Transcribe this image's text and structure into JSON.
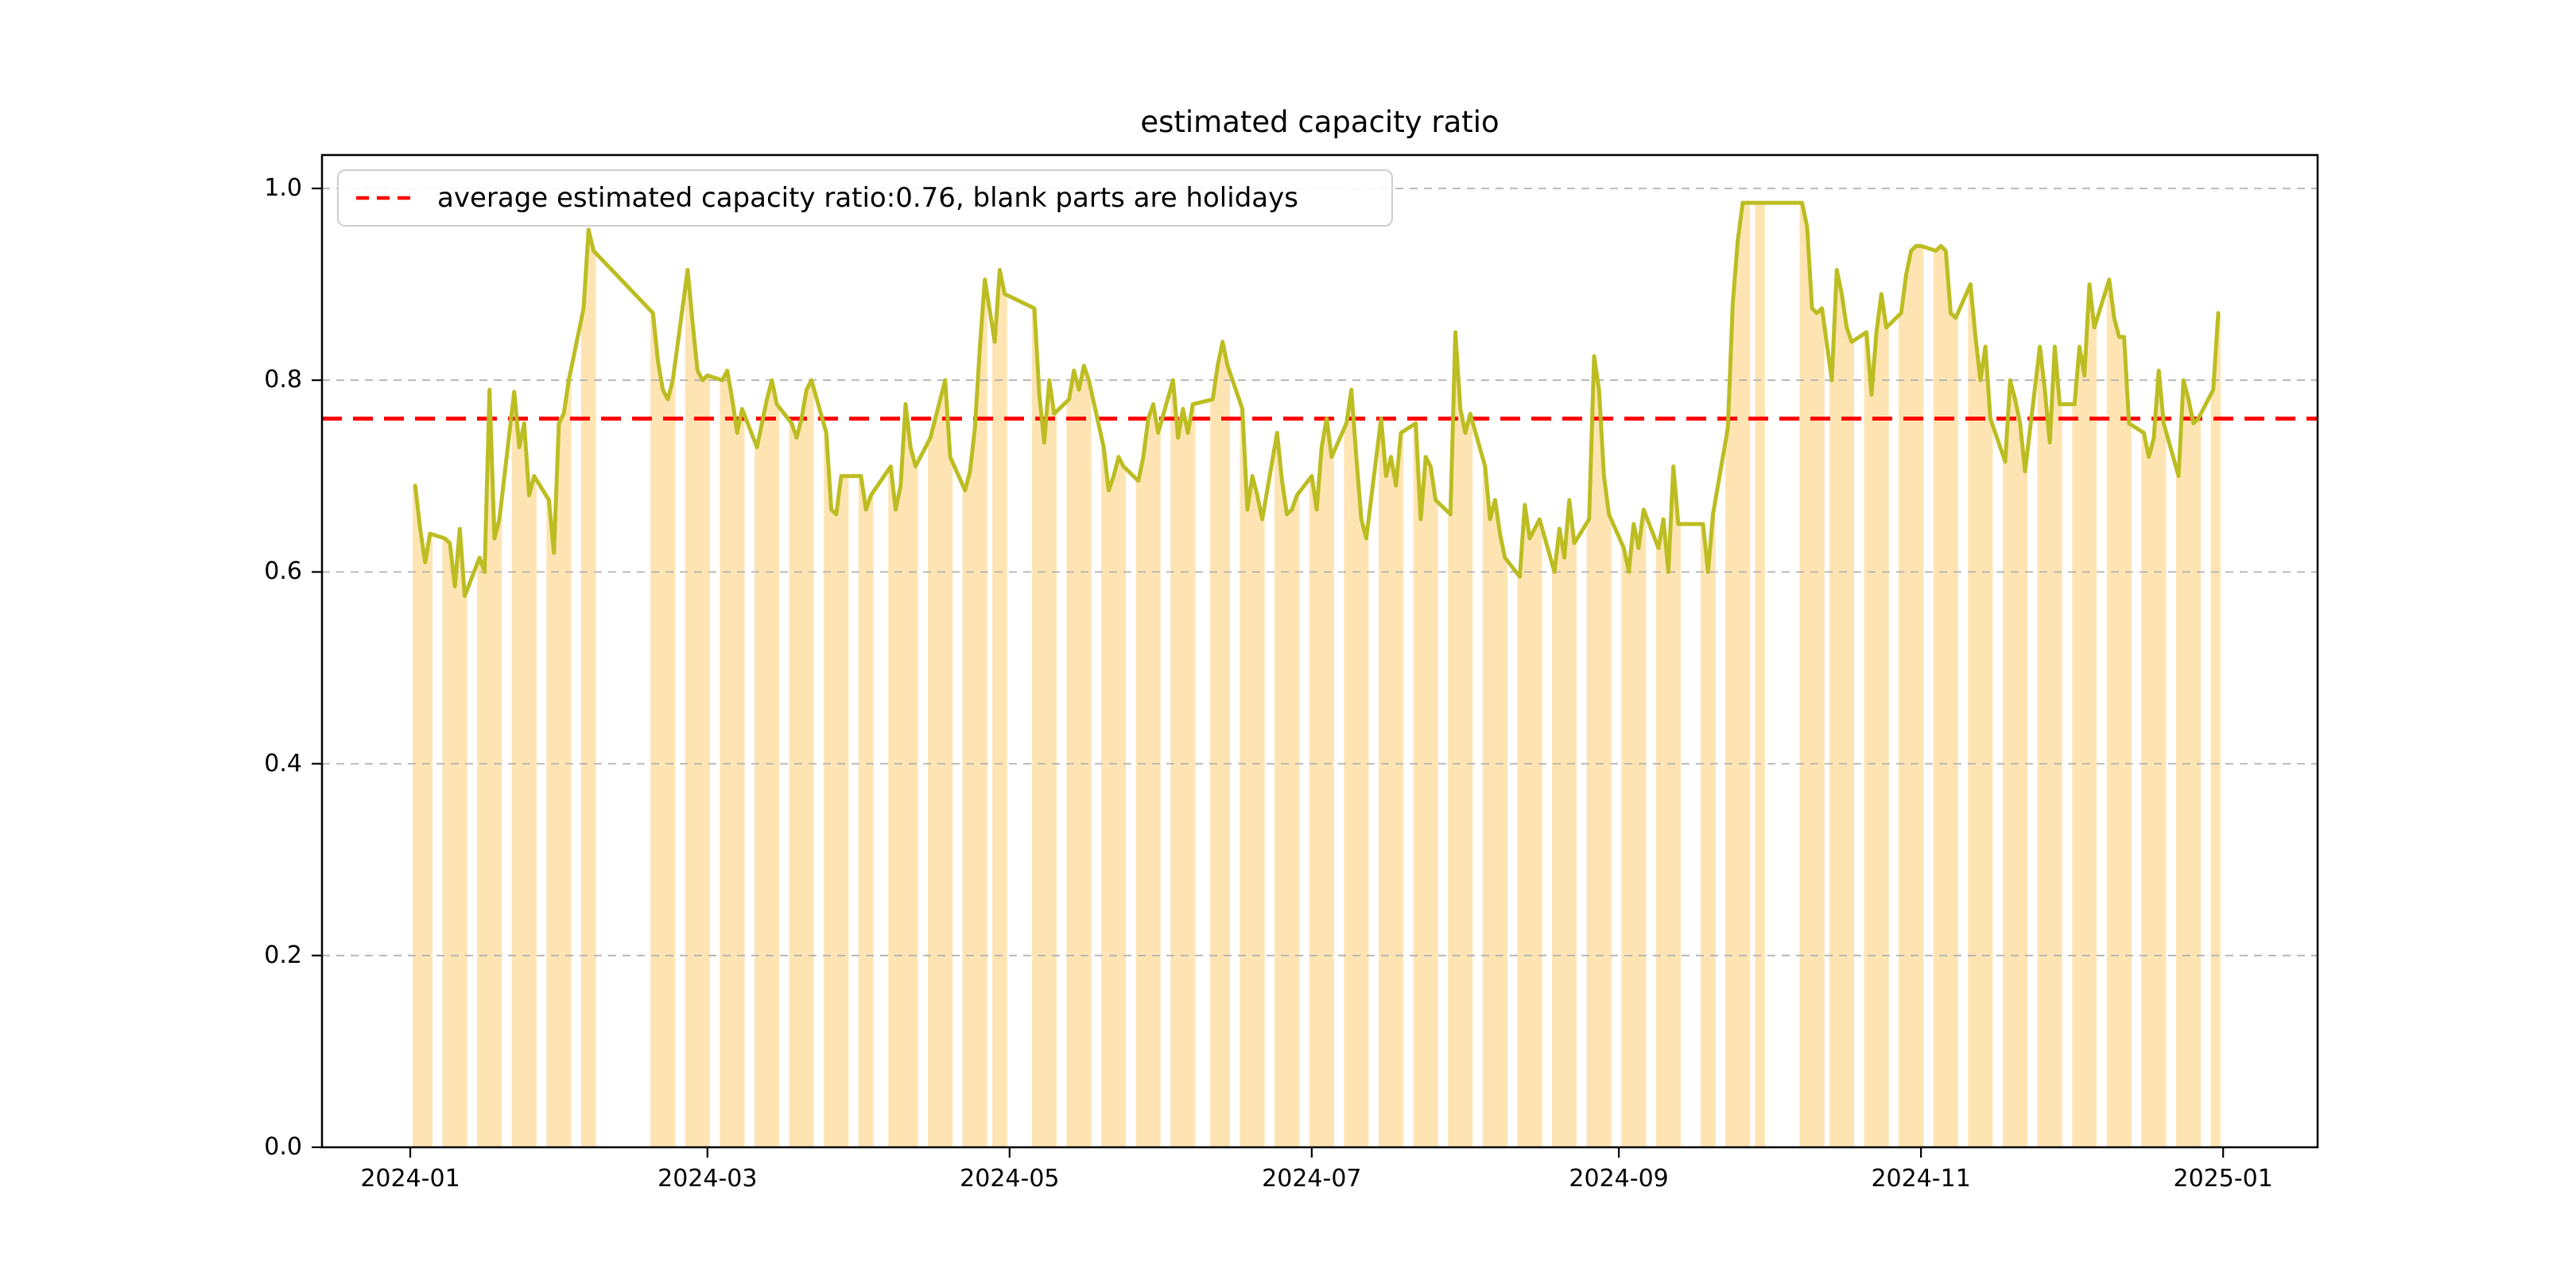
{
  "chart_data": {
    "type": "line",
    "title": "estimated capacity ratio",
    "legend": {
      "label": "average estimated capacity ratio:0.76, blank parts are holidays",
      "line_color": "#ff0000",
      "line_style": "dashed",
      "position": "upper left"
    },
    "average_line": {
      "value": 0.76,
      "color": "#ff0000",
      "style": "dashed"
    },
    "y_axis": {
      "tick_labels": [
        "0.0",
        "0.2",
        "0.4",
        "0.6",
        "0.8",
        "1.0"
      ],
      "tick_values": [
        0.0,
        0.2,
        0.4,
        0.6,
        0.8,
        1.0
      ],
      "range": [
        0.0,
        1.035
      ],
      "gridlines": "dashed gray"
    },
    "x_axis": {
      "tick_labels": [
        "2024-01",
        "2024-03",
        "2024-05",
        "2024-07",
        "2024-09",
        "2024-11",
        "2025-01"
      ],
      "tick_dates": [
        "2024-01-01",
        "2024-03-01",
        "2024-05-01",
        "2024-07-01",
        "2024-09-01",
        "2024-11-01",
        "2025-01-01"
      ],
      "range_dates": [
        "2023-12-14",
        "2025-01-20"
      ]
    },
    "series_name": "estimated capacity ratio (workdays only, blanks are holidays)",
    "series_color": "#bcbd22",
    "area_color": "#ffe4b3",
    "grid_color": "#b2b2b2",
    "series": [
      [
        "2024-01-02",
        0.69
      ],
      [
        "2024-01-03",
        0.645
      ],
      [
        "2024-01-04",
        0.61
      ],
      [
        "2024-01-05",
        0.64
      ],
      [
        "2024-01-08",
        0.635
      ],
      [
        "2024-01-09",
        0.63
      ],
      [
        "2024-01-10",
        0.585
      ],
      [
        "2024-01-11",
        0.645
      ],
      [
        "2024-01-12",
        0.575
      ],
      [
        "2024-01-15",
        0.615
      ],
      [
        "2024-01-16",
        0.6
      ],
      [
        "2024-01-17",
        0.79
      ],
      [
        "2024-01-18",
        0.635
      ],
      [
        "2024-01-19",
        0.655
      ],
      [
        "2024-01-22",
        0.788
      ],
      [
        "2024-01-23",
        0.73
      ],
      [
        "2024-01-24",
        0.755
      ],
      [
        "2024-01-25",
        0.68
      ],
      [
        "2024-01-26",
        0.7
      ],
      [
        "2024-01-29",
        0.675
      ],
      [
        "2024-01-30",
        0.62
      ],
      [
        "2024-01-31",
        0.755
      ],
      [
        "2024-02-01",
        0.765
      ],
      [
        "2024-02-02",
        0.8
      ],
      [
        "2024-02-05",
        0.875
      ],
      [
        "2024-02-06",
        0.957
      ],
      [
        "2024-02-07",
        0.935
      ],
      [
        "2024-02-19",
        0.87
      ],
      [
        "2024-02-20",
        0.82
      ],
      [
        "2024-02-21",
        0.79
      ],
      [
        "2024-02-22",
        0.78
      ],
      [
        "2024-02-23",
        0.8
      ],
      [
        "2024-02-26",
        0.915
      ],
      [
        "2024-02-27",
        0.86
      ],
      [
        "2024-02-28",
        0.81
      ],
      [
        "2024-02-29",
        0.8
      ],
      [
        "2024-03-01",
        0.805
      ],
      [
        "2024-03-04",
        0.8
      ],
      [
        "2024-03-05",
        0.81
      ],
      [
        "2024-03-06",
        0.78
      ],
      [
        "2024-03-07",
        0.745
      ],
      [
        "2024-03-08",
        0.77
      ],
      [
        "2024-03-11",
        0.73
      ],
      [
        "2024-03-12",
        0.755
      ],
      [
        "2024-03-13",
        0.78
      ],
      [
        "2024-03-14",
        0.8
      ],
      [
        "2024-03-15",
        0.775
      ],
      [
        "2024-03-18",
        0.755
      ],
      [
        "2024-03-19",
        0.74
      ],
      [
        "2024-03-20",
        0.76
      ],
      [
        "2024-03-21",
        0.79
      ],
      [
        "2024-03-22",
        0.8
      ],
      [
        "2024-03-25",
        0.745
      ],
      [
        "2024-03-26",
        0.665
      ],
      [
        "2024-03-27",
        0.66
      ],
      [
        "2024-03-28",
        0.7
      ],
      [
        "2024-03-29",
        0.7
      ],
      [
        "2024-04-01",
        0.7
      ],
      [
        "2024-04-02",
        0.665
      ],
      [
        "2024-04-03",
        0.68
      ],
      [
        "2024-04-07",
        0.71
      ],
      [
        "2024-04-08",
        0.665
      ],
      [
        "2024-04-09",
        0.69
      ],
      [
        "2024-04-10",
        0.775
      ],
      [
        "2024-04-11",
        0.73
      ],
      [
        "2024-04-12",
        0.71
      ],
      [
        "2024-04-15",
        0.74
      ],
      [
        "2024-04-16",
        0.76
      ],
      [
        "2024-04-17",
        0.78
      ],
      [
        "2024-04-18",
        0.8
      ],
      [
        "2024-04-19",
        0.72
      ],
      [
        "2024-04-22",
        0.685
      ],
      [
        "2024-04-23",
        0.705
      ],
      [
        "2024-04-24",
        0.75
      ],
      [
        "2024-04-25",
        0.835
      ],
      [
        "2024-04-26",
        0.905
      ],
      [
        "2024-04-28",
        0.84
      ],
      [
        "2024-04-29",
        0.915
      ],
      [
        "2024-04-30",
        0.89
      ],
      [
        "2024-05-06",
        0.875
      ],
      [
        "2024-05-07",
        0.785
      ],
      [
        "2024-05-08",
        0.735
      ],
      [
        "2024-05-09",
        0.8
      ],
      [
        "2024-05-10",
        0.765
      ],
      [
        "2024-05-13",
        0.78
      ],
      [
        "2024-05-14",
        0.81
      ],
      [
        "2024-05-15",
        0.79
      ],
      [
        "2024-05-16",
        0.815
      ],
      [
        "2024-05-17",
        0.8
      ],
      [
        "2024-05-20",
        0.73
      ],
      [
        "2024-05-21",
        0.685
      ],
      [
        "2024-05-22",
        0.7
      ],
      [
        "2024-05-23",
        0.72
      ],
      [
        "2024-05-24",
        0.71
      ],
      [
        "2024-05-27",
        0.695
      ],
      [
        "2024-05-28",
        0.72
      ],
      [
        "2024-05-29",
        0.76
      ],
      [
        "2024-05-30",
        0.775
      ],
      [
        "2024-05-31",
        0.745
      ],
      [
        "2024-06-03",
        0.8
      ],
      [
        "2024-06-04",
        0.74
      ],
      [
        "2024-06-05",
        0.77
      ],
      [
        "2024-06-06",
        0.745
      ],
      [
        "2024-06-07",
        0.775
      ],
      [
        "2024-06-11",
        0.78
      ],
      [
        "2024-06-12",
        0.815
      ],
      [
        "2024-06-13",
        0.84
      ],
      [
        "2024-06-14",
        0.815
      ],
      [
        "2024-06-17",
        0.77
      ],
      [
        "2024-06-18",
        0.665
      ],
      [
        "2024-06-19",
        0.7
      ],
      [
        "2024-06-20",
        0.68
      ],
      [
        "2024-06-21",
        0.655
      ],
      [
        "2024-06-24",
        0.745
      ],
      [
        "2024-06-25",
        0.695
      ],
      [
        "2024-06-26",
        0.66
      ],
      [
        "2024-06-27",
        0.665
      ],
      [
        "2024-06-28",
        0.68
      ],
      [
        "2024-07-01",
        0.7
      ],
      [
        "2024-07-02",
        0.665
      ],
      [
        "2024-07-03",
        0.73
      ],
      [
        "2024-07-04",
        0.76
      ],
      [
        "2024-07-05",
        0.72
      ],
      [
        "2024-07-08",
        0.755
      ],
      [
        "2024-07-09",
        0.79
      ],
      [
        "2024-07-10",
        0.72
      ],
      [
        "2024-07-11",
        0.655
      ],
      [
        "2024-07-12",
        0.635
      ],
      [
        "2024-07-15",
        0.76
      ],
      [
        "2024-07-16",
        0.7
      ],
      [
        "2024-07-17",
        0.72
      ],
      [
        "2024-07-18",
        0.69
      ],
      [
        "2024-07-19",
        0.745
      ],
      [
        "2024-07-22",
        0.755
      ],
      [
        "2024-07-23",
        0.655
      ],
      [
        "2024-07-24",
        0.72
      ],
      [
        "2024-07-25",
        0.71
      ],
      [
        "2024-07-26",
        0.675
      ],
      [
        "2024-07-29",
        0.66
      ],
      [
        "2024-07-30",
        0.85
      ],
      [
        "2024-07-31",
        0.77
      ],
      [
        "2024-08-01",
        0.745
      ],
      [
        "2024-08-02",
        0.765
      ],
      [
        "2024-08-05",
        0.71
      ],
      [
        "2024-08-06",
        0.655
      ],
      [
        "2024-08-07",
        0.675
      ],
      [
        "2024-08-08",
        0.64
      ],
      [
        "2024-08-09",
        0.615
      ],
      [
        "2024-08-12",
        0.595
      ],
      [
        "2024-08-13",
        0.67
      ],
      [
        "2024-08-14",
        0.635
      ],
      [
        "2024-08-15",
        0.645
      ],
      [
        "2024-08-16",
        0.655
      ],
      [
        "2024-08-19",
        0.6
      ],
      [
        "2024-08-20",
        0.645
      ],
      [
        "2024-08-21",
        0.615
      ],
      [
        "2024-08-22",
        0.675
      ],
      [
        "2024-08-23",
        0.63
      ],
      [
        "2024-08-26",
        0.655
      ],
      [
        "2024-08-27",
        0.825
      ],
      [
        "2024-08-28",
        0.79
      ],
      [
        "2024-08-29",
        0.7
      ],
      [
        "2024-08-30",
        0.66
      ],
      [
        "2024-09-02",
        0.625
      ],
      [
        "2024-09-03",
        0.6
      ],
      [
        "2024-09-04",
        0.65
      ],
      [
        "2024-09-05",
        0.625
      ],
      [
        "2024-09-06",
        0.665
      ],
      [
        "2024-09-09",
        0.625
      ],
      [
        "2024-09-10",
        0.655
      ],
      [
        "2024-09-11",
        0.6
      ],
      [
        "2024-09-12",
        0.71
      ],
      [
        "2024-09-13",
        0.65
      ],
      [
        "2024-09-18",
        0.65
      ],
      [
        "2024-09-19",
        0.6
      ],
      [
        "2024-09-20",
        0.66
      ],
      [
        "2024-09-23",
        0.75
      ],
      [
        "2024-09-24",
        0.88
      ],
      [
        "2024-09-25",
        0.945
      ],
      [
        "2024-09-26",
        0.985
      ],
      [
        "2024-09-27",
        0.985
      ],
      [
        "2024-09-29",
        0.985
      ],
      [
        "2024-09-30",
        0.985
      ],
      [
        "2024-10-08",
        0.985
      ],
      [
        "2024-10-09",
        0.96
      ],
      [
        "2024-10-10",
        0.875
      ],
      [
        "2024-10-11",
        0.87
      ],
      [
        "2024-10-12",
        0.875
      ],
      [
        "2024-10-14",
        0.8
      ],
      [
        "2024-10-15",
        0.915
      ],
      [
        "2024-10-16",
        0.89
      ],
      [
        "2024-10-17",
        0.855
      ],
      [
        "2024-10-18",
        0.84
      ],
      [
        "2024-10-21",
        0.85
      ],
      [
        "2024-10-22",
        0.785
      ],
      [
        "2024-10-23",
        0.85
      ],
      [
        "2024-10-24",
        0.89
      ],
      [
        "2024-10-25",
        0.855
      ],
      [
        "2024-10-28",
        0.87
      ],
      [
        "2024-10-29",
        0.91
      ],
      [
        "2024-10-30",
        0.935
      ],
      [
        "2024-10-31",
        0.94
      ],
      [
        "2024-11-01",
        0.94
      ],
      [
        "2024-11-04",
        0.935
      ],
      [
        "2024-11-05",
        0.94
      ],
      [
        "2024-11-06",
        0.935
      ],
      [
        "2024-11-07",
        0.87
      ],
      [
        "2024-11-08",
        0.865
      ],
      [
        "2024-11-11",
        0.9
      ],
      [
        "2024-11-12",
        0.845
      ],
      [
        "2024-11-13",
        0.8
      ],
      [
        "2024-11-14",
        0.835
      ],
      [
        "2024-11-15",
        0.76
      ],
      [
        "2024-11-18",
        0.715
      ],
      [
        "2024-11-19",
        0.8
      ],
      [
        "2024-11-20",
        0.78
      ],
      [
        "2024-11-21",
        0.755
      ],
      [
        "2024-11-22",
        0.705
      ],
      [
        "2024-11-25",
        0.835
      ],
      [
        "2024-11-26",
        0.79
      ],
      [
        "2024-11-27",
        0.735
      ],
      [
        "2024-11-28",
        0.835
      ],
      [
        "2024-11-29",
        0.775
      ],
      [
        "2024-12-02",
        0.775
      ],
      [
        "2024-12-03",
        0.835
      ],
      [
        "2024-12-04",
        0.805
      ],
      [
        "2024-12-05",
        0.9
      ],
      [
        "2024-12-06",
        0.855
      ],
      [
        "2024-12-09",
        0.905
      ],
      [
        "2024-12-10",
        0.865
      ],
      [
        "2024-12-11",
        0.845
      ],
      [
        "2024-12-12",
        0.845
      ],
      [
        "2024-12-13",
        0.755
      ],
      [
        "2024-12-16",
        0.745
      ],
      [
        "2024-12-17",
        0.72
      ],
      [
        "2024-12-18",
        0.74
      ],
      [
        "2024-12-19",
        0.81
      ],
      [
        "2024-12-20",
        0.755
      ],
      [
        "2024-12-23",
        0.7
      ],
      [
        "2024-12-24",
        0.8
      ],
      [
        "2024-12-25",
        0.78
      ],
      [
        "2024-12-26",
        0.755
      ],
      [
        "2024-12-27",
        0.76
      ],
      [
        "2024-12-30",
        0.79
      ],
      [
        "2024-12-31",
        0.87
      ]
    ]
  }
}
